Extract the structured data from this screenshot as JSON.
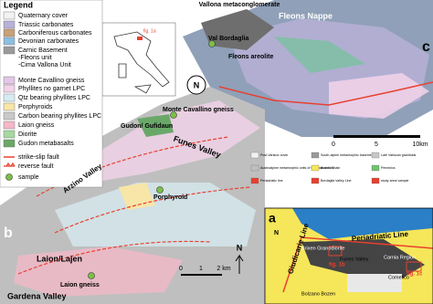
{
  "legend": {
    "title": "Legend",
    "items": [
      {
        "label": "Quaternary cover",
        "kind": "swatch",
        "color": "#f2f2f2"
      },
      {
        "label": "Triassic carbonates",
        "kind": "swatch",
        "color": "#b9b1d8"
      },
      {
        "label": "Carboniferous carbonates",
        "kind": "swatch",
        "color": "#c8a17a"
      },
      {
        "label": "Devonian carbonates",
        "kind": "swatch",
        "color": "#8fbfe0"
      },
      {
        "label": "Carnic Basement",
        "kind": "swatch",
        "color": "#9a9a9a"
      },
      {
        "label": "-Fleons unit",
        "kind": "text",
        "color": "#000000"
      },
      {
        "label": "-Cima Vallona Unit",
        "kind": "text",
        "color": "#000000"
      },
      {
        "label": "Monte Cavallino gneiss",
        "kind": "swatch",
        "color": "#e3c7e6"
      },
      {
        "label": "Phyllites no garnet LPC",
        "kind": "swatch",
        "color": "#f3d3ea"
      },
      {
        "label": "Qtz bearing phyllites LPC",
        "kind": "swatch",
        "color": "#d7ecf2"
      },
      {
        "label": "Porphyroids",
        "kind": "swatch",
        "color": "#f7e6a8"
      },
      {
        "label": "Carbon bearing phyllites LPC",
        "kind": "swatch",
        "color": "#c9c9c9"
      },
      {
        "label": "Laion gneiss",
        "kind": "swatch",
        "color": "#f5b8c8"
      },
      {
        "label": "Diorite",
        "kind": "swatch",
        "color": "#a7d8a0"
      },
      {
        "label": "Gudon metabasalts",
        "kind": "swatch",
        "color": "#6aa86a"
      },
      {
        "label": "strike-slip fault",
        "kind": "line",
        "color": "#e8402f"
      },
      {
        "label": "reverse fault",
        "kind": "reverse",
        "color": "#e8402f"
      },
      {
        "label": "sample",
        "kind": "star",
        "color": "#7ac143"
      }
    ]
  },
  "panel_c": {
    "letter": "c",
    "labels": [
      "Vallona metaconglomerate",
      "Fleons Nappe",
      "Fleons areolite",
      "Val Bordaglia"
    ],
    "inset": "fig. 1a",
    "north": "N",
    "scale": [
      "0",
      "5",
      "10km"
    ],
    "legend": [
      "Post-Variscic cover",
      "South-alpine metamorphic basement",
      "Late Variscan granitoids",
      "Austroalpine metamorphic units of the Paleozoic Chain",
      "Austrides",
      "Penninics",
      "Periadriatic line",
      "Bordaglia Valley Line",
      "study area/ sample"
    ]
  },
  "panel_b": {
    "letter": "b",
    "labels": [
      "Monte Cavallino gneiss",
      "Gudon/ Gufidaun",
      "Funes Valley",
      "Porphyroid",
      "Arzino Valley",
      "Laion/Lajen",
      "Laion gneiss",
      "Gardena Valley"
    ],
    "north": "N",
    "scale": [
      "0",
      "1",
      "2 km"
    ]
  },
  "panel_a": {
    "letter": "a",
    "north": "N",
    "labels": [
      "Giudicarie Line",
      "Periadriatic Line",
      "Brixen Granodiorite",
      "Funes Valley",
      "fig. 1b",
      "Bolzano Bozen",
      "Carnia Region",
      "Comelico",
      "fig. 1c"
    ]
  }
}
